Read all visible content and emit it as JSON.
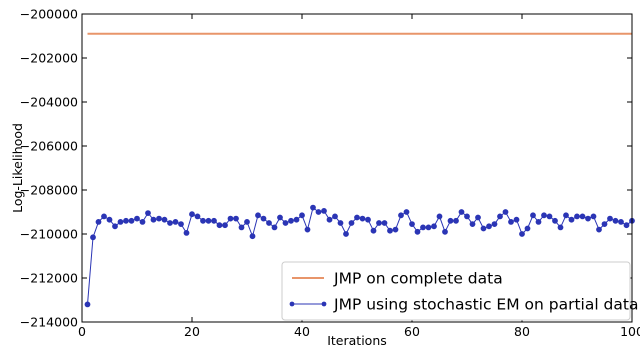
{
  "chart_data": {
    "type": "line",
    "xlabel": "Iterations",
    "ylabel": "Log-Likelihood",
    "xlim": [
      0,
      100
    ],
    "ylim": [
      -214000,
      -200000
    ],
    "x_ticks": [
      0,
      20,
      40,
      60,
      80,
      100
    ],
    "y_ticks": [
      -214000,
      -212000,
      -210000,
      -208000,
      -206000,
      -204000,
      -202000,
      -200000
    ],
    "x_tick_labels": [
      "0",
      "20",
      "40",
      "60",
      "80",
      "100"
    ],
    "y_tick_labels": [
      "−214000",
      "−212000",
      "−210000",
      "−208000",
      "−206000",
      "−204000",
      "−202000",
      "−200000"
    ],
    "grid": false,
    "legend_position": "lower-right",
    "series": [
      {
        "name": "JMP on complete data",
        "color": "#e8956a",
        "marker": "none",
        "x": [
          1,
          100
        ],
        "y": [
          -200900,
          -200900
        ]
      },
      {
        "name": "JMP using stochastic EM on partial data",
        "color": "#2b35b5",
        "marker": "circle",
        "x": [
          1,
          2,
          3,
          4,
          5,
          6,
          7,
          8,
          9,
          10,
          11,
          12,
          13,
          14,
          15,
          16,
          17,
          18,
          19,
          20,
          21,
          22,
          23,
          24,
          25,
          26,
          27,
          28,
          29,
          30,
          31,
          32,
          33,
          34,
          35,
          36,
          37,
          38,
          39,
          40,
          41,
          42,
          43,
          44,
          45,
          46,
          47,
          48,
          49,
          50,
          51,
          52,
          53,
          54,
          55,
          56,
          57,
          58,
          59,
          60,
          61,
          62,
          63,
          64,
          65,
          66,
          67,
          68,
          69,
          70,
          71,
          72,
          73,
          74,
          75,
          76,
          77,
          78,
          79,
          80,
          81,
          82,
          83,
          84,
          85,
          86,
          87,
          88,
          89,
          90,
          91,
          92,
          93,
          94,
          95,
          96,
          97,
          98,
          99,
          100
        ],
        "y": [
          -213200,
          -210150,
          -209450,
          -209200,
          -209350,
          -209650,
          -209450,
          -209400,
          -209400,
          -209300,
          -209450,
          -209050,
          -209350,
          -209300,
          -209350,
          -209500,
          -209450,
          -209550,
          -209950,
          -209100,
          -209200,
          -209400,
          -209400,
          -209400,
          -209600,
          -209600,
          -209300,
          -209300,
          -209700,
          -209450,
          -210100,
          -209150,
          -209300,
          -209500,
          -209700,
          -209250,
          -209500,
          -209400,
          -209350,
          -209150,
          -209800,
          -208800,
          -209000,
          -208950,
          -209350,
          -209200,
          -209500,
          -210000,
          -209500,
          -209250,
          -209300,
          -209350,
          -209850,
          -209500,
          -209500,
          -209850,
          -209800,
          -209150,
          -209000,
          -209550,
          -209900,
          -209700,
          -209700,
          -209650,
          -209200,
          -209900,
          -209400,
          -209400,
          -209000,
          -209200,
          -209550,
          -209250,
          -209750,
          -209650,
          -209550,
          -209200,
          -209000,
          -209450,
          -209350,
          -210000,
          -209750,
          -209150,
          -209450,
          -209150,
          -209200,
          -209400,
          -209700,
          -209150,
          -209350,
          -209200,
          -209200,
          -209300,
          -209200,
          -209800,
          -209550,
          -209300,
          -209400,
          -209450,
          -209600,
          -209400
        ]
      }
    ]
  }
}
